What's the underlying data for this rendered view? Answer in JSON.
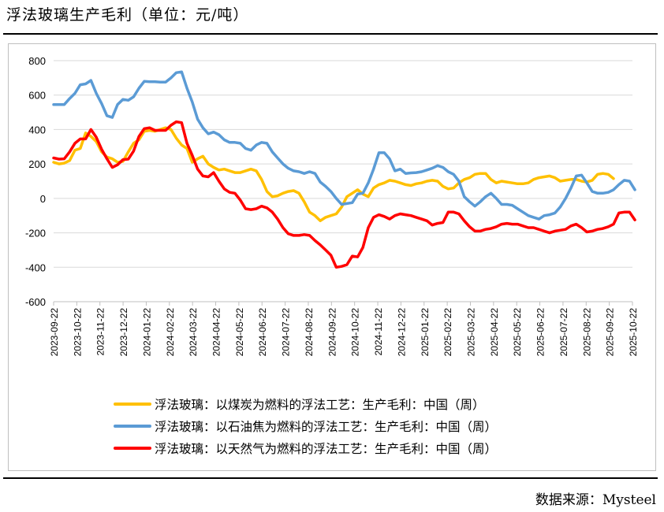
{
  "page": {
    "title": "浮法玻璃生产毛利（单位：元/吨）",
    "source": "数据来源：Mysteel"
  },
  "chart_data": {
    "type": "line",
    "title": "浮法玻璃生产毛利（单位：元/吨）",
    "ylabel": "元/吨",
    "xlabel": "",
    "ylim": [
      -600,
      800
    ],
    "yticks": [
      "-600",
      "-400",
      "-200",
      "0",
      "200",
      "400",
      "600",
      "800"
    ],
    "xticks": [
      "2023-09-22",
      "2023-10-22",
      "2023-11-22",
      "2023-12-22",
      "2024-01-22",
      "2024-02-22",
      "2024-03-22",
      "2024-04-22",
      "2024-05-22",
      "2024-06-22",
      "2024-07-22",
      "2024-08-22",
      "2024-09-22",
      "2024-10-22",
      "2024-11-22",
      "2024-12-22",
      "2025-01-22",
      "2025-02-22",
      "2025-03-22",
      "2025-04-22",
      "2025-05-22",
      "2025-06-22",
      "2025-07-22",
      "2025-08-22",
      "2025-09-22",
      "2025-10-22"
    ],
    "legend_position": "bottom",
    "series": [
      {
        "name": "浮法玻璃：以煤炭为燃料的浮法工艺：生产毛利：中国（周）",
        "color": "#FFC000",
        "points": [
          [
            0,
            210
          ],
          [
            1,
            200
          ],
          [
            2,
            205
          ],
          [
            3,
            220
          ],
          [
            4,
            280
          ],
          [
            5,
            290
          ],
          [
            6,
            380
          ],
          [
            7,
            360
          ],
          [
            8,
            330
          ],
          [
            9,
            270
          ],
          [
            10,
            240
          ],
          [
            11,
            230
          ],
          [
            12,
            210
          ],
          [
            13,
            215
          ],
          [
            14,
            270
          ],
          [
            15,
            320
          ],
          [
            16,
            340
          ],
          [
            17,
            390
          ],
          [
            18,
            395
          ],
          [
            19,
            390
          ],
          [
            20,
            400
          ],
          [
            21,
            410
          ],
          [
            22,
            400
          ],
          [
            23,
            350
          ],
          [
            24,
            310
          ],
          [
            25,
            290
          ],
          [
            26,
            210
          ],
          [
            27,
            230
          ],
          [
            28,
            245
          ],
          [
            29,
            200
          ],
          [
            30,
            180
          ],
          [
            31,
            165
          ],
          [
            32,
            170
          ],
          [
            33,
            160
          ],
          [
            34,
            150
          ],
          [
            35,
            150
          ],
          [
            36,
            160
          ],
          [
            37,
            170
          ],
          [
            38,
            160
          ],
          [
            39,
            110
          ],
          [
            40,
            40
          ],
          [
            41,
            10
          ],
          [
            42,
            15
          ],
          [
            43,
            30
          ],
          [
            44,
            40
          ],
          [
            45,
            45
          ],
          [
            46,
            30
          ],
          [
            47,
            -20
          ],
          [
            48,
            -80
          ],
          [
            49,
            -100
          ],
          [
            50,
            -130
          ],
          [
            51,
            -110
          ],
          [
            52,
            -100
          ],
          [
            53,
            -90
          ],
          [
            54,
            -50
          ],
          [
            55,
            10
          ],
          [
            56,
            30
          ],
          [
            57,
            50
          ],
          [
            58,
            25
          ],
          [
            59,
            10
          ],
          [
            60,
            60
          ],
          [
            61,
            80
          ],
          [
            62,
            90
          ],
          [
            63,
            105
          ],
          [
            64,
            100
          ],
          [
            65,
            90
          ],
          [
            66,
            80
          ],
          [
            67,
            75
          ],
          [
            68,
            85
          ],
          [
            69,
            90
          ],
          [
            70,
            100
          ],
          [
            71,
            105
          ],
          [
            72,
            100
          ],
          [
            73,
            70
          ],
          [
            74,
            55
          ],
          [
            75,
            60
          ],
          [
            76,
            90
          ],
          [
            77,
            110
          ],
          [
            78,
            120
          ],
          [
            79,
            140
          ],
          [
            80,
            145
          ],
          [
            81,
            145
          ],
          [
            82,
            110
          ],
          [
            83,
            90
          ],
          [
            84,
            100
          ],
          [
            85,
            95
          ],
          [
            86,
            90
          ],
          [
            87,
            85
          ],
          [
            88,
            85
          ],
          [
            89,
            90
          ],
          [
            90,
            110
          ],
          [
            91,
            120
          ],
          [
            92,
            125
          ],
          [
            93,
            130
          ],
          [
            94,
            120
          ],
          [
            95,
            100
          ],
          [
            96,
            105
          ],
          [
            97,
            110
          ],
          [
            98,
            110
          ],
          [
            99,
            100
          ],
          [
            100,
            95
          ],
          [
            101,
            105
          ],
          [
            102,
            140
          ],
          [
            103,
            145
          ],
          [
            104,
            140
          ],
          [
            105,
            115
          ]
        ]
      },
      {
        "name": "浮法玻璃：以石油焦为燃料的浮法工艺：生产毛利：中国（周）",
        "color": "#5B9BD5",
        "points": [
          [
            0,
            545
          ],
          [
            1,
            545
          ],
          [
            2,
            545
          ],
          [
            3,
            580
          ],
          [
            4,
            610
          ],
          [
            5,
            660
          ],
          [
            6,
            665
          ],
          [
            7,
            685
          ],
          [
            8,
            610
          ],
          [
            9,
            550
          ],
          [
            10,
            480
          ],
          [
            11,
            470
          ],
          [
            12,
            545
          ],
          [
            13,
            575
          ],
          [
            14,
            570
          ],
          [
            15,
            590
          ],
          [
            16,
            640
          ],
          [
            17,
            680
          ],
          [
            18,
            678
          ],
          [
            19,
            678
          ],
          [
            20,
            675
          ],
          [
            21,
            675
          ],
          [
            22,
            700
          ],
          [
            23,
            730
          ],
          [
            24,
            735
          ],
          [
            25,
            640
          ],
          [
            26,
            560
          ],
          [
            27,
            460
          ],
          [
            28,
            410
          ],
          [
            29,
            375
          ],
          [
            30,
            385
          ],
          [
            31,
            370
          ],
          [
            32,
            340
          ],
          [
            33,
            325
          ],
          [
            34,
            325
          ],
          [
            35,
            320
          ],
          [
            36,
            290
          ],
          [
            37,
            280
          ],
          [
            38,
            310
          ],
          [
            39,
            325
          ],
          [
            40,
            320
          ],
          [
            41,
            270
          ],
          [
            42,
            235
          ],
          [
            43,
            200
          ],
          [
            44,
            175
          ],
          [
            45,
            160
          ],
          [
            46,
            155
          ],
          [
            47,
            145
          ],
          [
            48,
            155
          ],
          [
            49,
            145
          ],
          [
            50,
            95
          ],
          [
            51,
            70
          ],
          [
            52,
            40
          ],
          [
            53,
            0
          ],
          [
            54,
            -35
          ],
          [
            55,
            -30
          ],
          [
            56,
            -25
          ],
          [
            57,
            25
          ],
          [
            58,
            30
          ],
          [
            59,
            90
          ],
          [
            60,
            170
          ],
          [
            61,
            265
          ],
          [
            62,
            265
          ],
          [
            63,
            230
          ],
          [
            64,
            160
          ],
          [
            65,
            170
          ],
          [
            66,
            145
          ],
          [
            67,
            148
          ],
          [
            68,
            150
          ],
          [
            69,
            155
          ],
          [
            70,
            165
          ],
          [
            71,
            175
          ],
          [
            72,
            190
          ],
          [
            73,
            180
          ],
          [
            74,
            155
          ],
          [
            75,
            140
          ],
          [
            76,
            100
          ],
          [
            77,
            10
          ],
          [
            78,
            -20
          ],
          [
            79,
            -45
          ],
          [
            80,
            -20
          ],
          [
            81,
            10
          ],
          [
            82,
            30
          ],
          [
            83,
            0
          ],
          [
            84,
            -35
          ],
          [
            85,
            -35
          ],
          [
            86,
            -40
          ],
          [
            87,
            -60
          ],
          [
            88,
            -80
          ],
          [
            89,
            -100
          ],
          [
            90,
            -110
          ],
          [
            91,
            -120
          ],
          [
            92,
            -100
          ],
          [
            93,
            -95
          ],
          [
            94,
            -85
          ],
          [
            95,
            -50
          ],
          [
            96,
            0
          ],
          [
            97,
            60
          ],
          [
            98,
            130
          ],
          [
            99,
            135
          ],
          [
            100,
            90
          ],
          [
            101,
            40
          ],
          [
            102,
            30
          ],
          [
            103,
            30
          ],
          [
            104,
            35
          ],
          [
            105,
            50
          ],
          [
            106,
            80
          ],
          [
            107,
            105
          ],
          [
            108,
            100
          ],
          [
            109,
            50
          ]
        ]
      },
      {
        "name": "浮法玻璃：以天然气为燃料的浮法工艺：生产毛利：中国（周）",
        "color": "#FF0000",
        "points": [
          [
            0,
            235
          ],
          [
            1,
            228
          ],
          [
            2,
            230
          ],
          [
            3,
            270
          ],
          [
            4,
            320
          ],
          [
            5,
            345
          ],
          [
            6,
            345
          ],
          [
            7,
            400
          ],
          [
            8,
            355
          ],
          [
            9,
            285
          ],
          [
            10,
            230
          ],
          [
            11,
            180
          ],
          [
            12,
            195
          ],
          [
            13,
            225
          ],
          [
            14,
            228
          ],
          [
            15,
            275
          ],
          [
            16,
            360
          ],
          [
            17,
            405
          ],
          [
            18,
            410
          ],
          [
            19,
            395
          ],
          [
            20,
            395
          ],
          [
            21,
            395
          ],
          [
            22,
            425
          ],
          [
            23,
            445
          ],
          [
            24,
            440
          ],
          [
            25,
            320
          ],
          [
            26,
            250
          ],
          [
            27,
            170
          ],
          [
            28,
            130
          ],
          [
            29,
            125
          ],
          [
            30,
            150
          ],
          [
            31,
            100
          ],
          [
            32,
            55
          ],
          [
            33,
            35
          ],
          [
            34,
            30
          ],
          [
            35,
            -10
          ],
          [
            36,
            -60
          ],
          [
            37,
            -65
          ],
          [
            38,
            -60
          ],
          [
            39,
            -45
          ],
          [
            40,
            -55
          ],
          [
            41,
            -80
          ],
          [
            42,
            -120
          ],
          [
            43,
            -170
          ],
          [
            44,
            -205
          ],
          [
            45,
            -215
          ],
          [
            46,
            -215
          ],
          [
            47,
            -210
          ],
          [
            48,
            -215
          ],
          [
            49,
            -245
          ],
          [
            50,
            -270
          ],
          [
            51,
            -300
          ],
          [
            52,
            -330
          ],
          [
            53,
            -400
          ],
          [
            54,
            -395
          ],
          [
            55,
            -385
          ],
          [
            56,
            -335
          ],
          [
            57,
            -340
          ],
          [
            58,
            -285
          ],
          [
            59,
            -170
          ],
          [
            60,
            -110
          ],
          [
            61,
            -95
          ],
          [
            62,
            -105
          ],
          [
            63,
            -120
          ],
          [
            64,
            -100
          ],
          [
            65,
            -90
          ],
          [
            66,
            -95
          ],
          [
            67,
            -100
          ],
          [
            68,
            -110
          ],
          [
            69,
            -120
          ],
          [
            70,
            -130
          ],
          [
            71,
            -155
          ],
          [
            72,
            -145
          ],
          [
            73,
            -140
          ],
          [
            74,
            -80
          ],
          [
            75,
            -80
          ],
          [
            76,
            -90
          ],
          [
            77,
            -130
          ],
          [
            78,
            -165
          ],
          [
            79,
            -190
          ],
          [
            80,
            -190
          ],
          [
            81,
            -180
          ],
          [
            82,
            -175
          ],
          [
            83,
            -165
          ],
          [
            84,
            -150
          ],
          [
            85,
            -145
          ],
          [
            86,
            -150
          ],
          [
            87,
            -150
          ],
          [
            88,
            -160
          ],
          [
            89,
            -170
          ],
          [
            90,
            -170
          ],
          [
            91,
            -180
          ],
          [
            92,
            -190
          ],
          [
            93,
            -200
          ],
          [
            94,
            -190
          ],
          [
            95,
            -185
          ],
          [
            96,
            -180
          ],
          [
            97,
            -160
          ],
          [
            98,
            -150
          ],
          [
            99,
            -170
          ],
          [
            100,
            -195
          ],
          [
            101,
            -190
          ],
          [
            102,
            -180
          ],
          [
            103,
            -175
          ],
          [
            104,
            -165
          ],
          [
            105,
            -150
          ],
          [
            106,
            -85
          ],
          [
            107,
            -80
          ],
          [
            108,
            -80
          ],
          [
            109,
            -125
          ]
        ]
      }
    ]
  }
}
